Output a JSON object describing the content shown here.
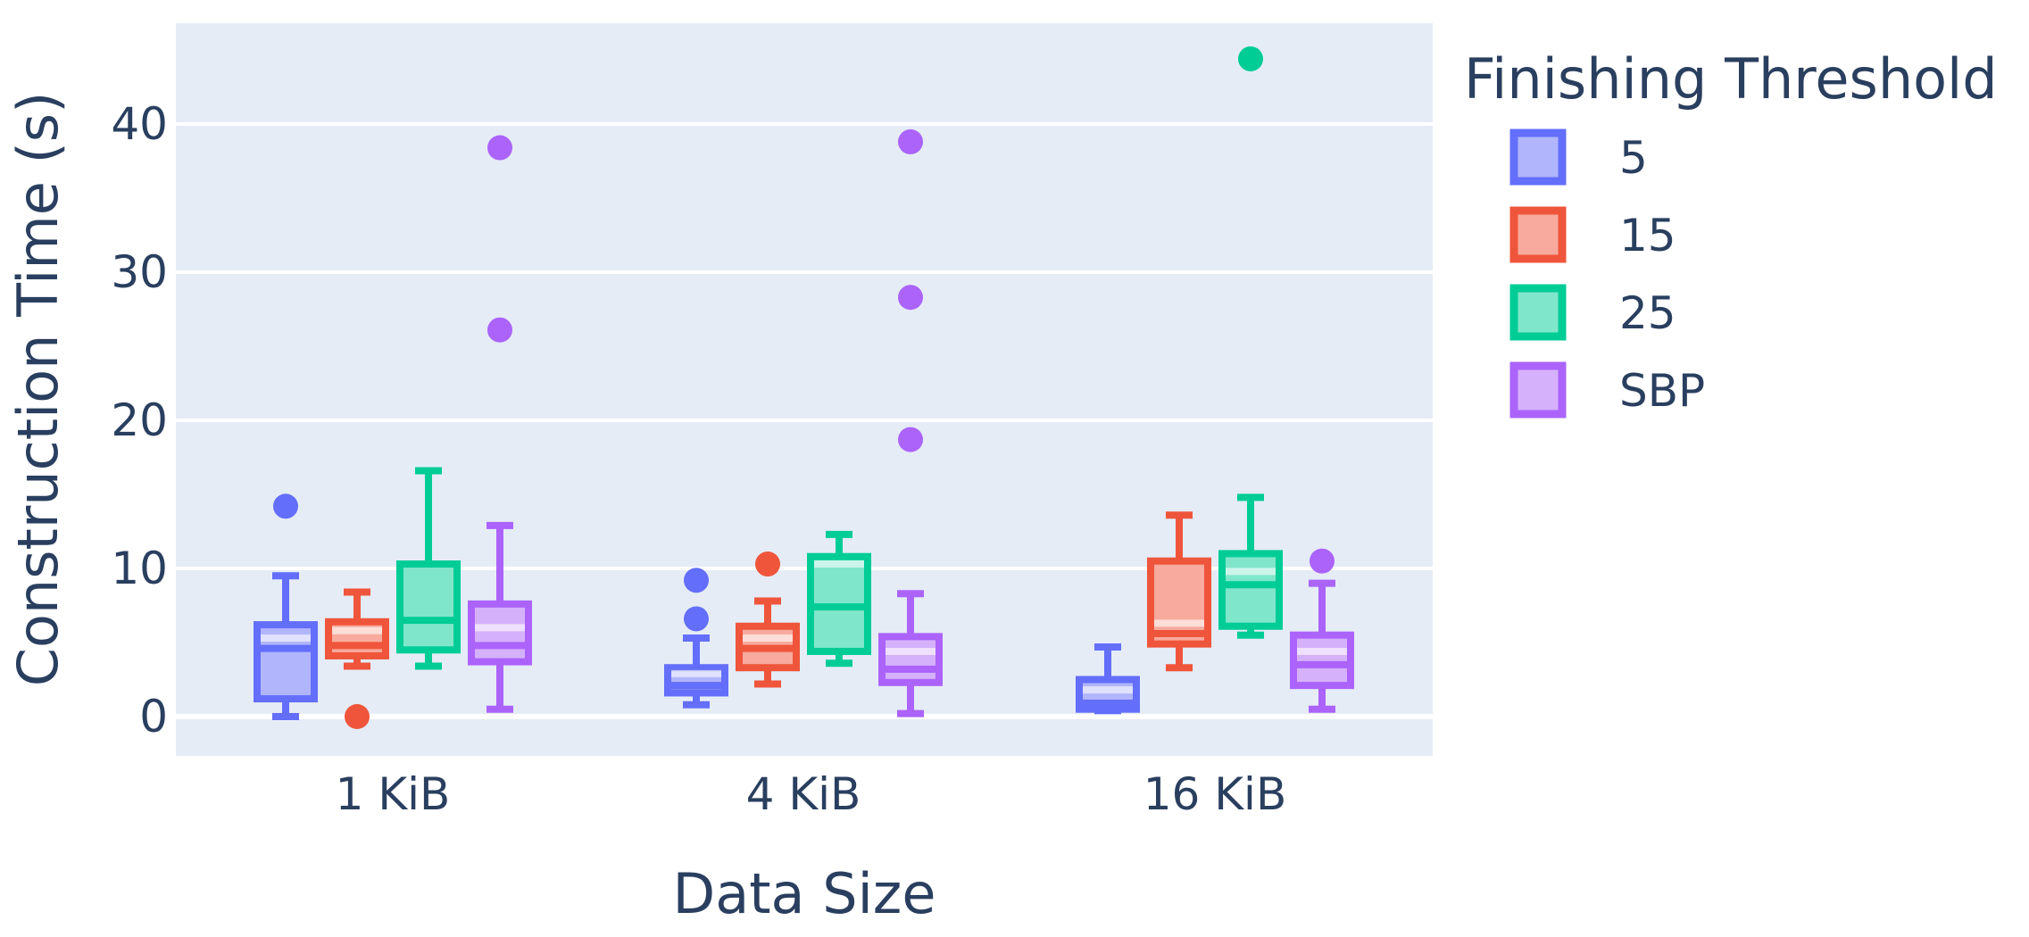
{
  "chart_data": {
    "type": "box",
    "xlabel": "Data Size",
    "ylabel": "Construction Time (s)",
    "categories": [
      "1 KiB",
      "4 KiB",
      "16 KiB"
    ],
    "yticks": [
      0,
      10,
      20,
      30,
      40
    ],
    "ylim": [
      -2.7,
      46.9
    ],
    "grid": true,
    "legend": {
      "title": "Finishing Threshold",
      "placement": "right"
    },
    "series": [
      {
        "name": "5",
        "color": "#636efa",
        "fill": "#b0b5fc",
        "boxes": [
          {
            "category": "1 KiB",
            "min": 0.0,
            "q1": 1.2,
            "median": 4.6,
            "mean": 5.3,
            "q3": 6.2,
            "max": 9.5,
            "outliers": [
              14.2
            ]
          },
          {
            "category": "4 KiB",
            "min": 0.8,
            "q1": 1.6,
            "median": 2.1,
            "mean": 2.9,
            "q3": 3.3,
            "max": 5.3,
            "outliers": [
              6.6,
              9.2
            ]
          },
          {
            "category": "16 KiB",
            "min": 0.4,
            "q1": 0.5,
            "median": 0.9,
            "mean": 1.8,
            "q3": 2.5,
            "max": 4.7,
            "outliers": []
          }
        ]
      },
      {
        "name": "15",
        "color": "#ef553b",
        "fill": "#f7aa9d",
        "boxes": [
          {
            "category": "1 KiB",
            "min": 3.4,
            "q1": 4.1,
            "median": 4.8,
            "mean": 5.8,
            "q3": 6.4,
            "max": 8.4,
            "outliers": [
              0.0
            ]
          },
          {
            "category": "4 KiB",
            "min": 2.2,
            "q1": 3.3,
            "median": 4.6,
            "mean": 5.3,
            "q3": 6.1,
            "max": 7.8,
            "outliers": [
              10.3
            ]
          },
          {
            "category": "16 KiB",
            "min": 3.3,
            "q1": 4.9,
            "median": 5.6,
            "mean": 6.3,
            "q3": 10.5,
            "max": 13.6,
            "outliers": []
          }
        ]
      },
      {
        "name": "25",
        "color": "#00cc96",
        "fill": "#80e6cb",
        "boxes": [
          {
            "category": "1 KiB",
            "min": 3.4,
            "q1": 4.5,
            "median": 6.5,
            "mean": 6.5,
            "q3": 10.3,
            "max": 16.6,
            "outliers": []
          },
          {
            "category": "4 KiB",
            "min": 3.6,
            "q1": 4.4,
            "median": 7.4,
            "mean": 10.3,
            "q3": 10.8,
            "max": 12.3,
            "outliers": []
          },
          {
            "category": "16 KiB",
            "min": 5.5,
            "q1": 6.1,
            "median": 8.9,
            "mean": 9.8,
            "q3": 11.0,
            "max": 14.8,
            "outliers": [
              44.4
            ]
          }
        ]
      },
      {
        "name": "SBP",
        "color": "#ab63fa",
        "fill": "#d5b1fc",
        "boxes": [
          {
            "category": "1 KiB",
            "min": 0.5,
            "q1": 3.7,
            "median": 4.8,
            "mean": 6.0,
            "q3": 7.6,
            "max": 12.9,
            "outliers": [
              26.1,
              38.4
            ]
          },
          {
            "category": "4 KiB",
            "min": 0.2,
            "q1": 2.3,
            "median": 3.2,
            "mean": 4.4,
            "q3": 5.4,
            "max": 8.3,
            "outliers": [
              18.7,
              28.3,
              38.8
            ]
          },
          {
            "category": "16 KiB",
            "min": 0.5,
            "q1": 2.1,
            "median": 3.5,
            "mean": 4.4,
            "q3": 5.5,
            "max": 9.0,
            "outliers": [
              10.5
            ]
          }
        ]
      }
    ]
  }
}
